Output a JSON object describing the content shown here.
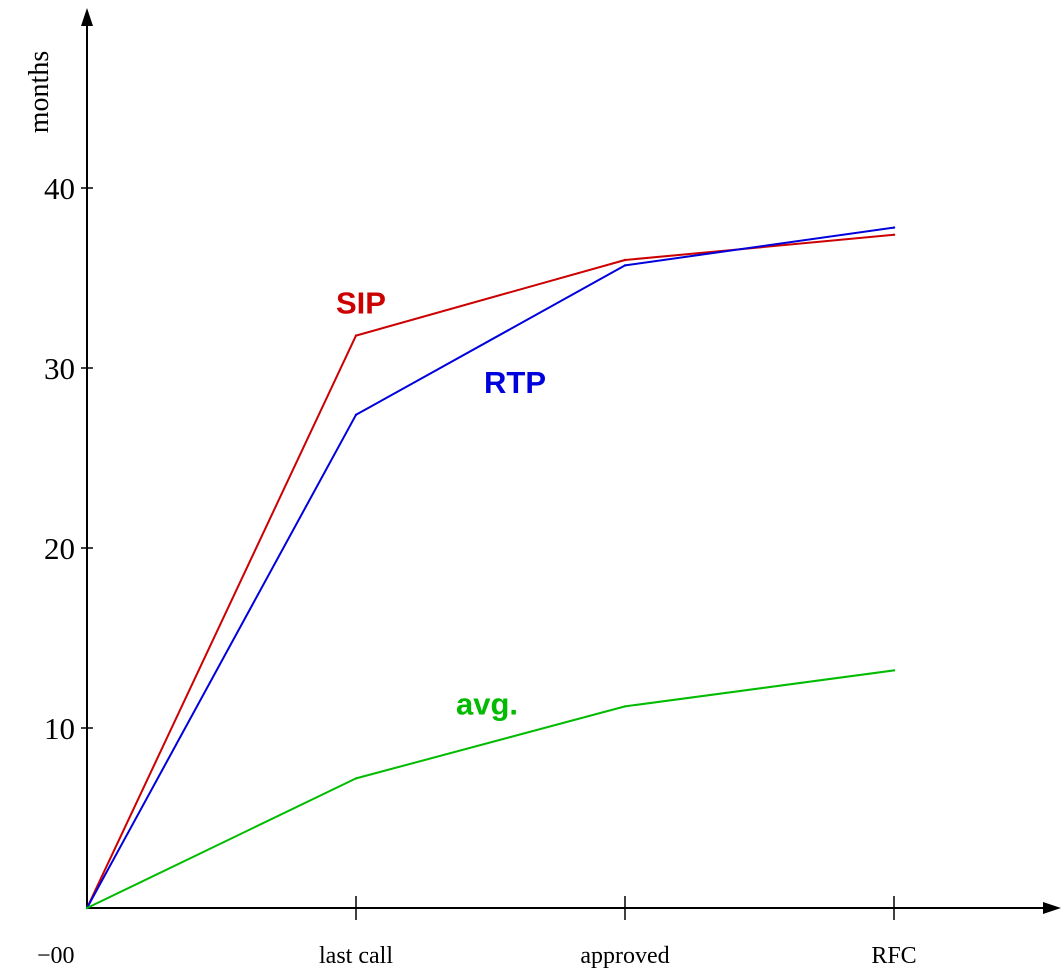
{
  "chart_data": {
    "type": "line",
    "title": "",
    "xlabel": "",
    "ylabel": "months",
    "categories": [
      "−00",
      "last call",
      "approved",
      "RFC"
    ],
    "y_ticks": [
      10,
      20,
      30,
      40
    ],
    "ylim": [
      0,
      49
    ],
    "grid": false,
    "legend": "inline labels",
    "series": [
      {
        "name": "SIP",
        "color": "#cc0000",
        "values": [
          0,
          31.8,
          36.0,
          37.4
        ]
      },
      {
        "name": "RTP",
        "color": "#0000dd",
        "values": [
          0,
          27.4,
          35.7,
          37.8
        ]
      },
      {
        "name": "avg.",
        "color": "#00bb00",
        "values": [
          0,
          7.2,
          11.2,
          13.2
        ]
      }
    ]
  }
}
